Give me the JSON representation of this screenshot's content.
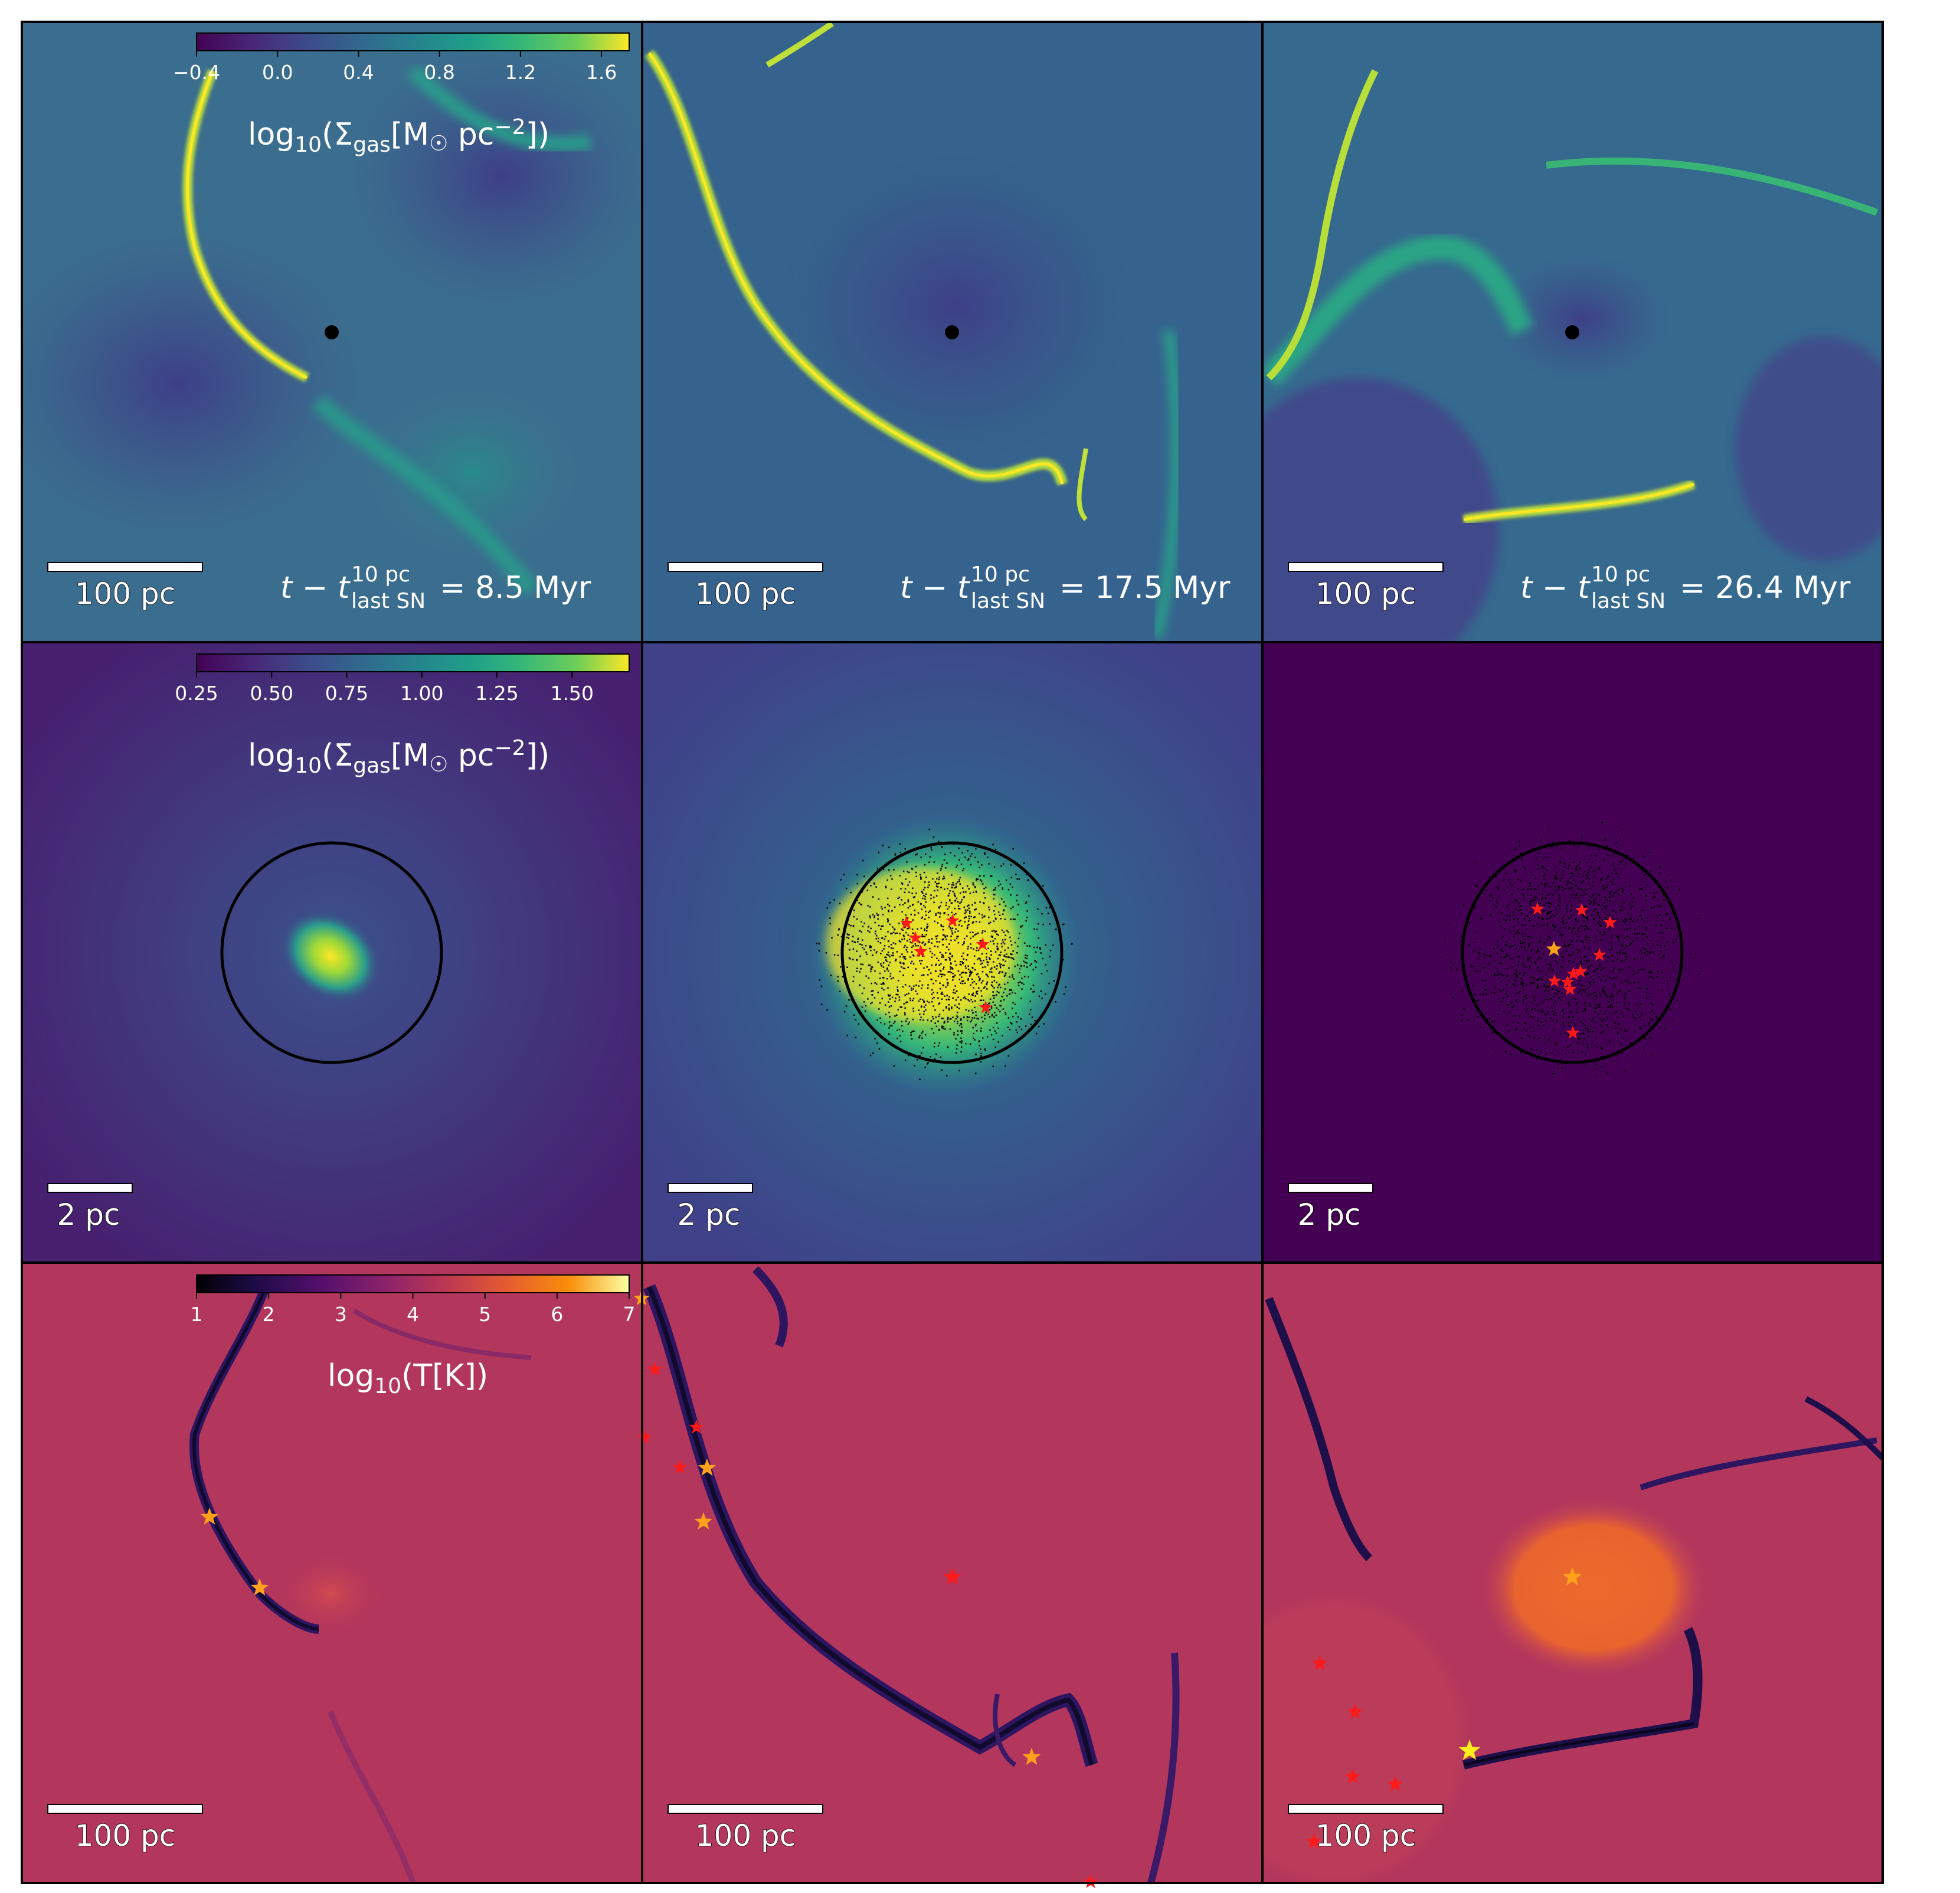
{
  "colorbars": {
    "row1": {
      "label_pre": "log",
      "label_sub": "10",
      "label_main": "(Σ",
      "label_gas": "gas",
      "label_unit": "[M",
      "label_sun": "☉",
      "label_pc": " pc",
      "label_exp": "−2",
      "label_close": "])",
      "ticks": [
        "−0.4",
        "0.0",
        "0.4",
        "0.8",
        "1.2",
        "1.6"
      ],
      "cmap": "viridis"
    },
    "row2": {
      "label_pre": "log",
      "label_sub": "10",
      "label_main": "(Σ",
      "label_gas": "gas",
      "label_unit": "[M",
      "label_sun": "☉",
      "label_pc": " pc",
      "label_exp": "−2",
      "label_close": "])",
      "ticks": [
        "0.25",
        "0.50",
        "0.75",
        "1.00",
        "1.25",
        "1.50"
      ],
      "cmap": "viridis"
    },
    "row3": {
      "label_pre": "log",
      "label_sub": "10",
      "label_main": "(T[K])",
      "ticks": [
        "1",
        "2",
        "3",
        "4",
        "5",
        "6",
        "7"
      ],
      "cmap": "inferno"
    }
  },
  "scalebars": {
    "large": "100 pc",
    "small": "2 pc"
  },
  "time_labels": [
    {
      "t": "t − t",
      "sup": "10 pc",
      "sub": "last SN",
      "value": "= 8.5 Myr"
    },
    {
      "t": "t − t",
      "sup": "10 pc",
      "sub": "last SN",
      "value": "= 17.5 Myr"
    },
    {
      "t": "t − t",
      "sup": "10 pc",
      "sub": "last SN",
      "value": "= 26.4 Myr"
    }
  ],
  "colors": {
    "star_red": "#ff1a1a",
    "star_orange": "#ffa21a",
    "star_yellow": "#ffee1a",
    "gas_bg_row1": "#3b6e8e",
    "gas_bg_row2_a": "#472877",
    "gas_bg_row2_b": "#3b528b",
    "gas_bg_row2_c": "#440154",
    "temp_bg": "#b5365c"
  }
}
